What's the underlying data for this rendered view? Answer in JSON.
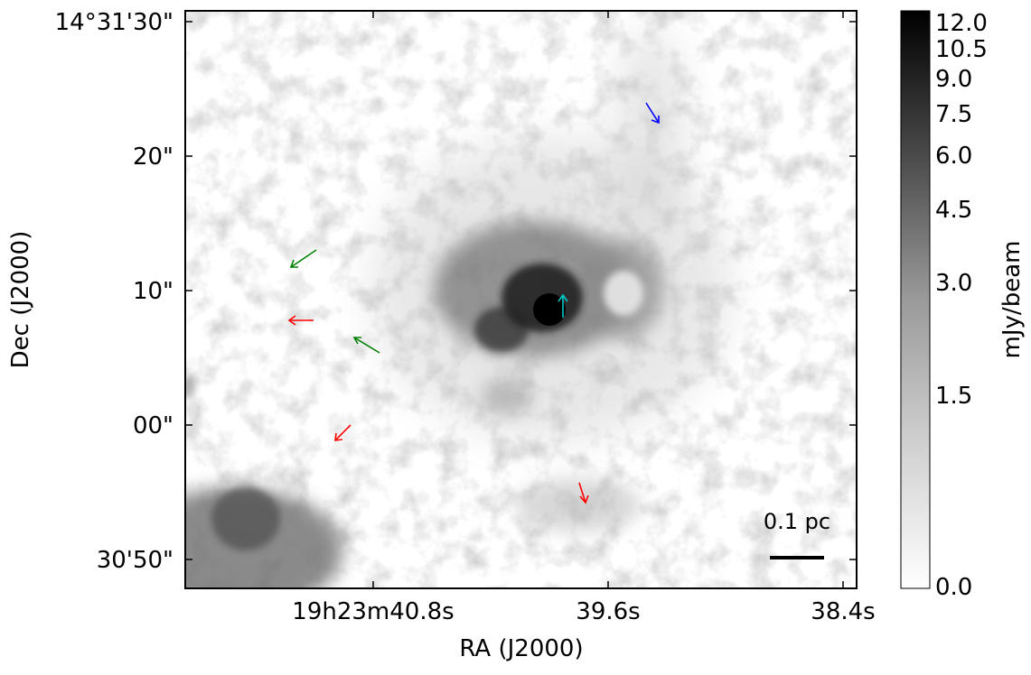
{
  "figure": {
    "x_axis_label": "RA (J2000)",
    "y_axis_label": "Dec (J2000)",
    "x_ticks": [
      "19h23m40.8s",
      "39.6s",
      "38.4s"
    ],
    "y_ticks": [
      "14°31'30\"",
      "20\"",
      "10\"",
      "00\"",
      "30'50\""
    ],
    "scale_bar_label": "0.1 pc"
  },
  "colorbar": {
    "label": "mJy/beam",
    "ticks": [
      "12.0",
      "10.5",
      "9.0",
      "7.5",
      "6.0",
      "4.5",
      "3.0",
      "1.5",
      "0.0"
    ],
    "colormap": "grayscale (white low, black high)"
  },
  "arrows": [
    {
      "color": "#0000ff",
      "name": "blue"
    },
    {
      "color": "#008000",
      "name": "green"
    },
    {
      "color": "#008000",
      "name": "green"
    },
    {
      "color": "#ff0000",
      "name": "red"
    },
    {
      "color": "#ff0000",
      "name": "red"
    },
    {
      "color": "#ff0000",
      "name": "red"
    },
    {
      "color": "#00c8c8",
      "name": "cyan"
    }
  ]
}
